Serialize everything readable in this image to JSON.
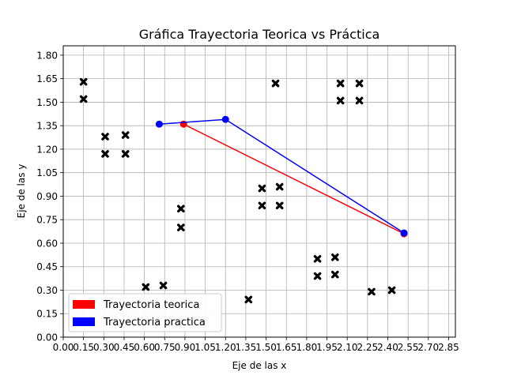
{
  "chart_data": {
    "type": "line",
    "title": "Gráfica Trayectoria Teorica vs Práctica",
    "xlabel": "Eje de las x",
    "ylabel": "Eje de las y",
    "xlim": [
      0,
      2.9
    ],
    "ylim": [
      0,
      1.86
    ],
    "grid": true,
    "x_ticks": [
      "0.00",
      "0.15",
      "0.30",
      "0.45",
      "0.60",
      "0.75",
      "0.90",
      "1.05",
      "1.20",
      "1.35",
      "1.50",
      "1.65",
      "1.80",
      "1.95",
      "2.10",
      "2.25",
      "2.40",
      "2.55",
      "2.70",
      "2.85"
    ],
    "y_ticks": [
      "0.00",
      "0.15",
      "0.30",
      "0.45",
      "0.60",
      "0.75",
      "0.90",
      "1.05",
      "1.20",
      "1.35",
      "1.50",
      "1.65",
      "1.80"
    ],
    "legend_position": "bottom-left",
    "series": [
      {
        "name": "Trayectoria teorica",
        "color": "#ff0000",
        "points": [
          [
            0.89,
            1.36
          ],
          [
            2.52,
            0.66
          ]
        ]
      },
      {
        "name": "Trayectoria practica",
        "color": "#0000ff",
        "points": [
          [
            0.71,
            1.36
          ],
          [
            1.2,
            1.39
          ],
          [
            2.52,
            0.665
          ]
        ]
      }
    ],
    "obstacles": [
      [
        0.15,
        1.63
      ],
      [
        0.15,
        1.52
      ],
      [
        0.31,
        1.28
      ],
      [
        0.31,
        1.17
      ],
      [
        0.46,
        1.29
      ],
      [
        0.46,
        1.17
      ],
      [
        0.61,
        0.32
      ],
      [
        0.74,
        0.33
      ],
      [
        0.87,
        0.82
      ],
      [
        0.87,
        0.7
      ],
      [
        1.37,
        0.24
      ],
      [
        1.47,
        0.95
      ],
      [
        1.47,
        0.84
      ],
      [
        1.57,
        1.62
      ],
      [
        1.6,
        0.96
      ],
      [
        1.6,
        0.84
      ],
      [
        1.88,
        0.5
      ],
      [
        1.88,
        0.39
      ],
      [
        2.01,
        0.51
      ],
      [
        2.01,
        0.4
      ],
      [
        2.05,
        1.62
      ],
      [
        2.05,
        1.51
      ],
      [
        2.19,
        1.62
      ],
      [
        2.19,
        1.51
      ],
      [
        2.28,
        0.29
      ],
      [
        2.43,
        0.3
      ]
    ]
  }
}
